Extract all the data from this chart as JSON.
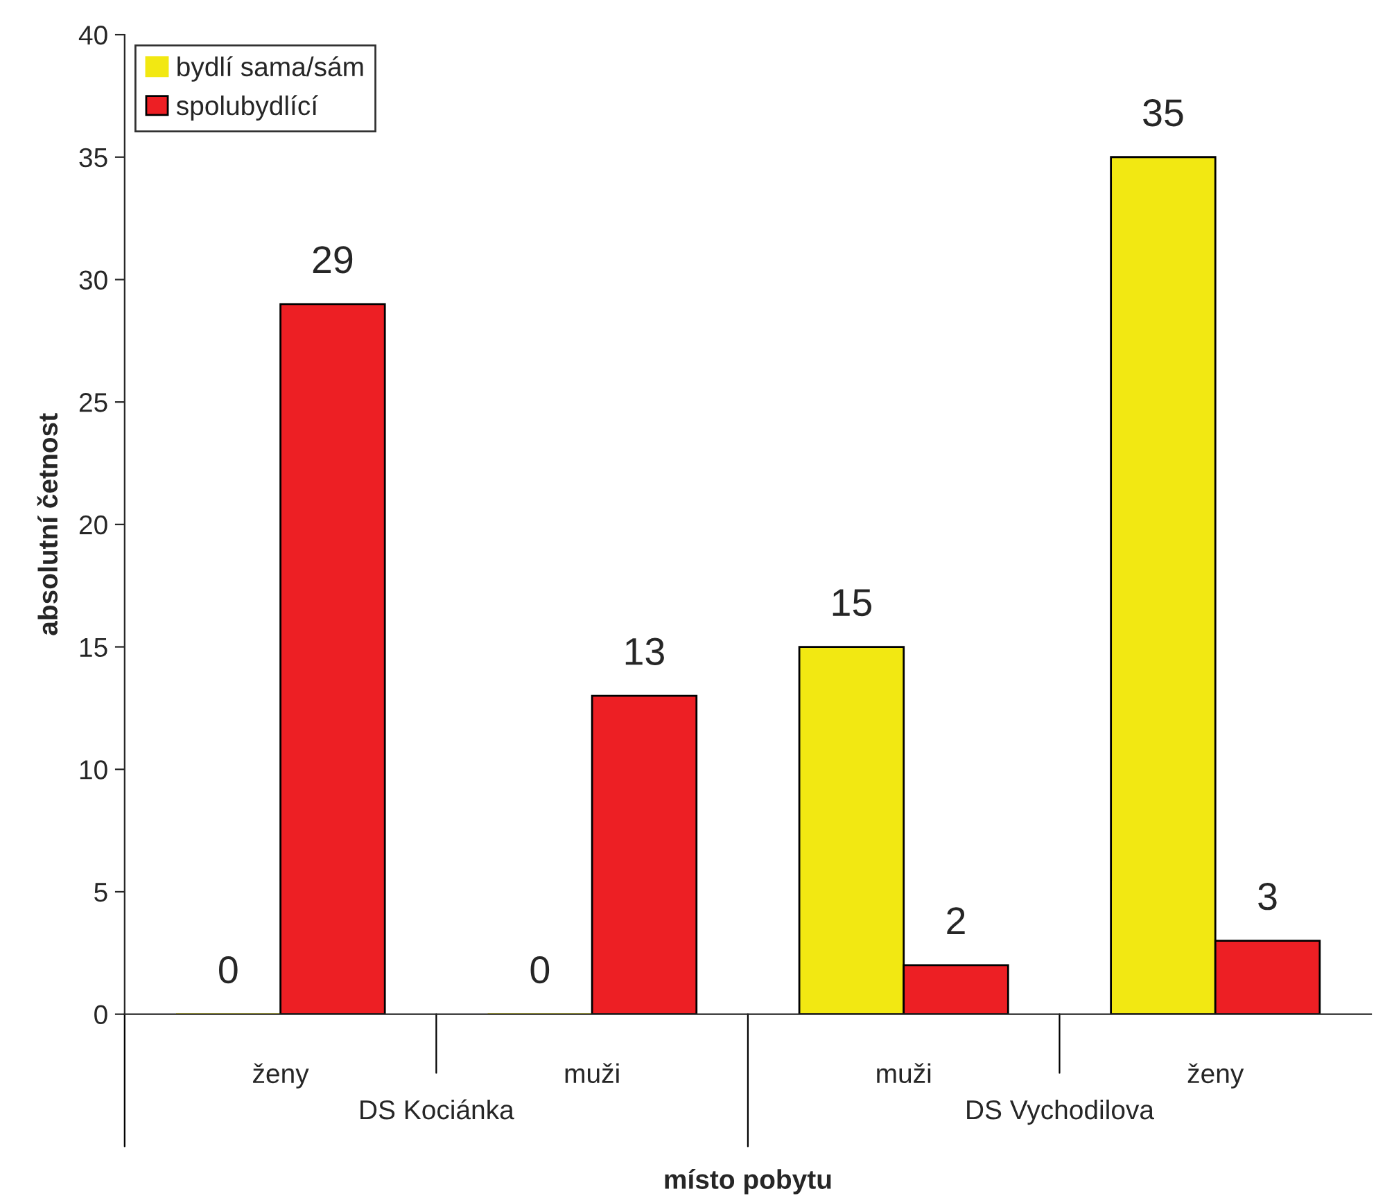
{
  "chart_data": {
    "type": "bar",
    "xlabel": "místo pobytu",
    "ylabel": "absolutní četnost",
    "categories": [
      "ženy",
      "muži",
      "muži",
      "ženy"
    ],
    "series": [
      {
        "name": "bydlí sama/sám",
        "color": "#f2e812",
        "values": [
          0,
          0,
          15,
          35
        ]
      },
      {
        "name": "spolubydlící",
        "color": "#ed1f24",
        "values": [
          29,
          13,
          2,
          3
        ]
      }
    ],
    "annotations": [
      "DS Kociánka",
      "DS Vychodilova"
    ],
    "ylim": [
      0,
      40
    ],
    "yticks": [
      0,
      5,
      10,
      15,
      20,
      25,
      30,
      35,
      40
    ],
    "data_labels": true,
    "legend": "top left",
    "grid": false
  }
}
